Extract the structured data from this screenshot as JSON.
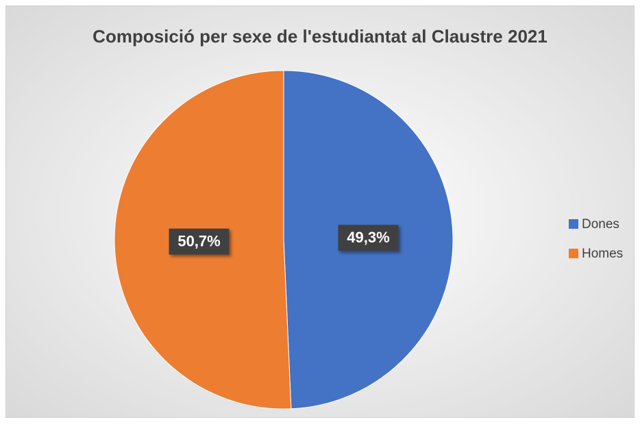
{
  "chart_data": {
    "type": "pie",
    "title": "Composició per sexe de l'estudiantat al Claustre 2021",
    "categories": [
      "Dones",
      "Homes"
    ],
    "values": [
      49.3,
      50.7
    ],
    "value_labels": [
      "49,3%",
      "50,7%"
    ],
    "colors": [
      "#4472c4",
      "#ed7d31"
    ],
    "legend": "right"
  }
}
